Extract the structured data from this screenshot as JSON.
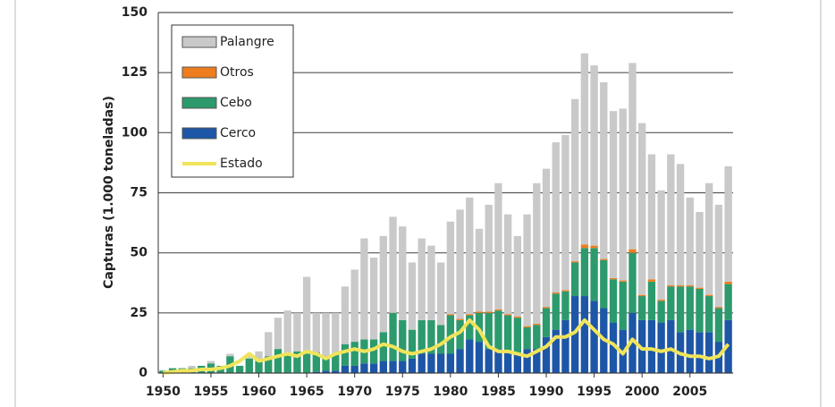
{
  "chart_data": {
    "type": "bar",
    "stacked": true,
    "y_label": "Capturas (1.000 toneladas)",
    "x": [
      1950,
      1951,
      1952,
      1953,
      1954,
      1955,
      1956,
      1957,
      1958,
      1959,
      1960,
      1961,
      1962,
      1963,
      1964,
      1965,
      1966,
      1967,
      1968,
      1969,
      1970,
      1971,
      1972,
      1973,
      1974,
      1975,
      1976,
      1977,
      1978,
      1979,
      1980,
      1981,
      1982,
      1983,
      1984,
      1985,
      1986,
      1987,
      1988,
      1989,
      1990,
      1991,
      1992,
      1993,
      1994,
      1995,
      1996,
      1997,
      1998,
      1999,
      2000,
      2001,
      2002,
      2003,
      2004,
      2005,
      2006,
      2007,
      2008,
      2009
    ],
    "xlim": [
      1949.5,
      2009.5
    ],
    "xticks": [
      1950,
      1955,
      1960,
      1965,
      1970,
      1975,
      1980,
      1985,
      1990,
      1995,
      2000,
      2005
    ],
    "ylim": [
      0,
      150
    ],
    "yticks": [
      0,
      25,
      50,
      75,
      100,
      125,
      150
    ],
    "grid": true,
    "legend": "upper left",
    "series": [
      {
        "name": "Palangre",
        "color": "#c9c9c9",
        "type": "bar",
        "values": [
          0,
          0,
          0,
          1,
          0,
          1,
          0,
          1,
          0,
          1,
          4,
          10,
          13,
          18,
          16,
          32,
          16.5,
          18,
          17,
          24,
          30,
          42,
          34,
          40,
          40,
          39,
          28,
          34,
          31,
          26,
          38.5,
          45.5,
          48.5,
          34.5,
          44.5,
          52.5,
          41.5,
          33.5,
          46.5,
          58.5,
          57.5,
          62.5,
          64.5,
          67.5,
          79.5,
          75,
          73.5,
          69.5,
          71.5,
          77.5,
          71.5,
          52,
          45.5,
          54.5,
          50.5,
          36.5,
          31.5,
          46.5,
          42.5,
          48
        ]
      },
      {
        "name": "Otros",
        "color": "#ee7d1f",
        "type": "bar",
        "values": [
          0,
          0,
          0,
          0,
          0,
          0,
          0,
          0,
          0,
          0,
          0,
          0,
          0,
          0,
          0,
          0,
          0,
          0,
          0,
          0,
          0,
          0,
          0,
          0,
          0,
          0,
          0,
          0,
          0,
          0,
          0.5,
          0.5,
          0.5,
          0.5,
          0.5,
          0.5,
          0.5,
          0.5,
          0.5,
          0.5,
          0.5,
          0.5,
          0.5,
          0.5,
          1.5,
          1,
          0.5,
          0.5,
          0.5,
          1.5,
          0.5,
          1,
          0.5,
          0.5,
          0.5,
          0.5,
          0.5,
          0.5,
          0.5,
          1
        ]
      },
      {
        "name": "Cebo",
        "color": "#2c9a6c",
        "type": "bar",
        "values": [
          1,
          2,
          2,
          2,
          3,
          4,
          3,
          7,
          3,
          6,
          5,
          7,
          10,
          8,
          9,
          8,
          8,
          6,
          7,
          9,
          10,
          10,
          10,
          12,
          20,
          17,
          12,
          14,
          14,
          12,
          16,
          12,
          10,
          12,
          15,
          16,
          15,
          15,
          9,
          10,
          12,
          15,
          12,
          14,
          20,
          22,
          20,
          18,
          20,
          25,
          10,
          16,
          9,
          14,
          19,
          18,
          18,
          15,
          14,
          15
        ]
      },
      {
        "name": "Cerco",
        "color": "#1d56a6",
        "type": "bar",
        "values": [
          0,
          0,
          0,
          0,
          0,
          0,
          0,
          0,
          0,
          0,
          0,
          0,
          0,
          0,
          0,
          0,
          0.5,
          1,
          1,
          3,
          3,
          4,
          4,
          5,
          5,
          5,
          6,
          8,
          8,
          8,
          8,
          10,
          14,
          13,
          10,
          10,
          9,
          8,
          10,
          10,
          15,
          18,
          22,
          32,
          32,
          30,
          27,
          21,
          18,
          25,
          22,
          22,
          21,
          22,
          17,
          18,
          17,
          17,
          13,
          22
        ]
      },
      {
        "name": "Estado",
        "color": "#f0e45a",
        "type": "line",
        "values": [
          0,
          0.5,
          1,
          1,
          1.5,
          1.5,
          2,
          3,
          5,
          8,
          5,
          6,
          7,
          8,
          7,
          9,
          8,
          6,
          8,
          9,
          10,
          9,
          10,
          12,
          11,
          9,
          8,
          9,
          10,
          12,
          15,
          17,
          22,
          18,
          11,
          9,
          9,
          8,
          7,
          9,
          11,
          15,
          15,
          17,
          22,
          18,
          14,
          12,
          8,
          14,
          10,
          10,
          9,
          10,
          8,
          7,
          7,
          6,
          7,
          12
        ]
      }
    ]
  }
}
